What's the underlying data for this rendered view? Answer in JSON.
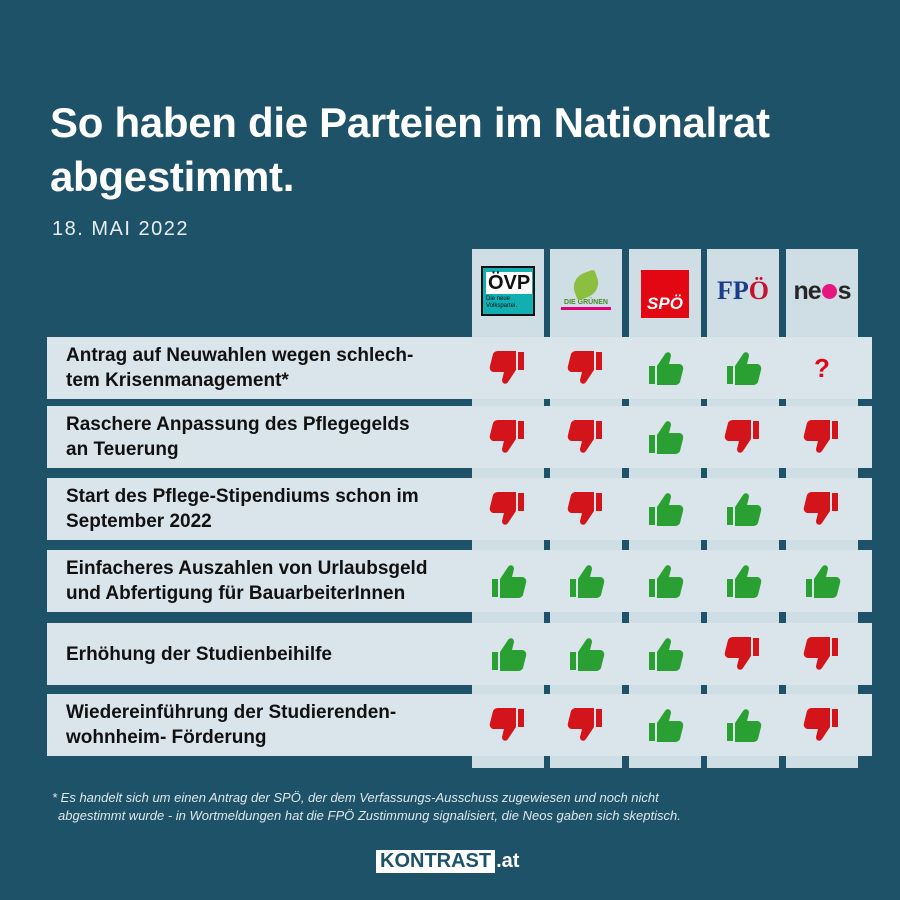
{
  "title_line1": "So haben die Parteien im Nationalrat",
  "title_line2": "abgestimmt.",
  "date": "18. MAI 2022",
  "parties": [
    {
      "name": "ÖVP",
      "logo_text": "ÖVP",
      "logo_sub": "Die neue Volkspartei."
    },
    {
      "name": "Die Grünen",
      "logo_text": "DIE GRÜNEN"
    },
    {
      "name": "SPÖ",
      "logo_text": "SPÖ"
    },
    {
      "name": "FPÖ",
      "logo_text_a": "FP",
      "logo_text_b": "Ö"
    },
    {
      "name": "NEOS",
      "logo_text_a": "ne",
      "logo_text_b": "s"
    }
  ],
  "rows": [
    {
      "label": "Antrag auf Neuwahlen wegen schlechtem Krisenmanagement*",
      "votes": [
        "no",
        "no",
        "yes",
        "yes",
        "unknown"
      ]
    },
    {
      "label": "Raschere Anpassung des Pflegegelds an Teuerung",
      "votes": [
        "no",
        "no",
        "yes",
        "no",
        "no"
      ]
    },
    {
      "label": "Start des Pflege-Stipendiums schon im September 2022",
      "votes": [
        "no",
        "no",
        "yes",
        "yes",
        "no"
      ]
    },
    {
      "label": "Einfacheres Auszahlen von Urlaubsgeld und Abfertigung für BauarbeiterInnen",
      "votes": [
        "yes",
        "yes",
        "yes",
        "yes",
        "yes"
      ]
    },
    {
      "label": "Erhöhung der Studienbeihilfe",
      "votes": [
        "yes",
        "yes",
        "yes",
        "no",
        "no"
      ]
    },
    {
      "label": "Wiedereinführung der Studierenden-wohnheim- Förderung",
      "votes": [
        "no",
        "no",
        "yes",
        "yes",
        "no"
      ]
    }
  ],
  "row_labels_display": [
    [
      "Antrag auf Neuwahlen wegen schlech-",
      "tem Krisenmanagement*"
    ],
    [
      "Raschere Anpassung des Pflegegelds",
      "an Teuerung"
    ],
    [
      "Start des Pflege-Stipendiums schon im",
      "September 2022"
    ],
    [
      "Einfacheres Auszahlen von Urlaubsgeld",
      "und Abfertigung für BauarbeiterInnen"
    ],
    [
      "Erhöhung der Studienbeihilfe"
    ],
    [
      "Wiedereinführung der Studierenden-",
      "wohnheim- Förderung"
    ]
  ],
  "unknown_symbol": "?",
  "footnote_line1": "* Es handelt sich um einen Antrag der SPÖ, der dem Verfassungs-Ausschuss zugewiesen und noch nicht",
  "footnote_line2": "abgestimmt wurde - in Wortmeldungen hat die FPÖ Zustimmung signalisiert, die Neos gaben sich skeptisch.",
  "brand_box": "KONTRAST",
  "brand_suffix": ".at",
  "colors": {
    "background": "#1d5268",
    "yes": "#2aa032",
    "no": "#d3151b",
    "unknown": "#e30613"
  }
}
